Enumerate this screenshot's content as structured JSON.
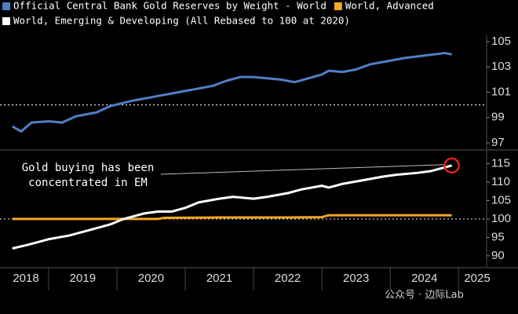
{
  "chart_data": [
    {
      "type": "line",
      "xlim": [
        2018.29,
        2025.41
      ],
      "ylim": [
        96.5,
        105.5
      ],
      "yticks": [
        97,
        99,
        101,
        103,
        105
      ],
      "refline": 100,
      "series": [
        {
          "name": "Official Central Bank Gold Reserves by Weight - World",
          "color": "#4f7fc6",
          "x": [
            2018.47,
            2018.6,
            2018.75,
            2019.0,
            2019.2,
            2019.4,
            2019.7,
            2019.9,
            2020.2,
            2020.5,
            2020.8,
            2021.0,
            2021.2,
            2021.4,
            2021.6,
            2021.8,
            2022.0,
            2022.2,
            2022.4,
            2022.6,
            2022.8,
            2023.0,
            2023.1,
            2023.3,
            2023.5,
            2023.7,
            2024.0,
            2024.2,
            2024.5,
            2024.8,
            2024.9
          ],
          "values": [
            98.3,
            97.9,
            98.6,
            98.7,
            98.6,
            99.1,
            99.4,
            99.9,
            100.3,
            100.6,
            100.9,
            101.1,
            101.3,
            101.5,
            101.9,
            102.2,
            102.2,
            102.1,
            102.0,
            101.8,
            102.1,
            102.4,
            102.7,
            102.6,
            102.8,
            103.2,
            103.5,
            103.7,
            103.9,
            104.1,
            104.0
          ]
        }
      ]
    },
    {
      "type": "line",
      "xlim": [
        2018.29,
        2025.41
      ],
      "ylim": [
        87,
        118.5
      ],
      "yticks": [
        90,
        95,
        100,
        105,
        110,
        115
      ],
      "refline": 100,
      "xticks": [
        {
          "value": 2018.5,
          "label": "2018"
        },
        {
          "value": 2019.5,
          "label": "2019"
        },
        {
          "value": 2020.5,
          "label": "2020"
        },
        {
          "value": 2021.5,
          "label": "2021"
        },
        {
          "value": 2022.5,
          "label": "2022"
        },
        {
          "value": 2023.5,
          "label": "2023"
        },
        {
          "value": 2024.5,
          "label": "2024"
        },
        {
          "value": 2025.5,
          "label": "2025"
        }
      ],
      "annotation": [
        "Gold buying has been",
        "concentrated in EM"
      ],
      "series": [
        {
          "name": "World, Advanced",
          "color": "#f5a623",
          "x": [
            2018.47,
            2019.0,
            2020.0,
            2020.6,
            2020.7,
            2021.5,
            2022.5,
            2023.0,
            2023.1,
            2024.0,
            2024.9
          ],
          "values": [
            100,
            100,
            100,
            100,
            100.3,
            100.4,
            100.4,
            100.5,
            101,
            101,
            101
          ]
        },
        {
          "name": "World, Emerging & Developing (All Rebased to 100 at 2020)",
          "color": "#ffffff",
          "x": [
            2018.47,
            2018.7,
            2019.0,
            2019.3,
            2019.6,
            2019.9,
            2020.1,
            2020.4,
            2020.6,
            2020.8,
            2021.0,
            2021.2,
            2021.5,
            2021.7,
            2022.0,
            2022.2,
            2022.5,
            2022.7,
            2023.0,
            2023.1,
            2023.3,
            2023.6,
            2023.9,
            2024.1,
            2024.4,
            2024.6,
            2024.9
          ],
          "values": [
            92,
            93,
            94.5,
            95.5,
            97,
            98.5,
            100,
            101.5,
            102,
            102,
            103,
            104.5,
            105.5,
            106,
            105.5,
            106,
            107,
            108,
            109,
            108.5,
            109.5,
            110.5,
            111.5,
            112,
            112.5,
            113,
            114.5
          ]
        }
      ]
    }
  ],
  "watermark": "公众号 · 边际Lab"
}
